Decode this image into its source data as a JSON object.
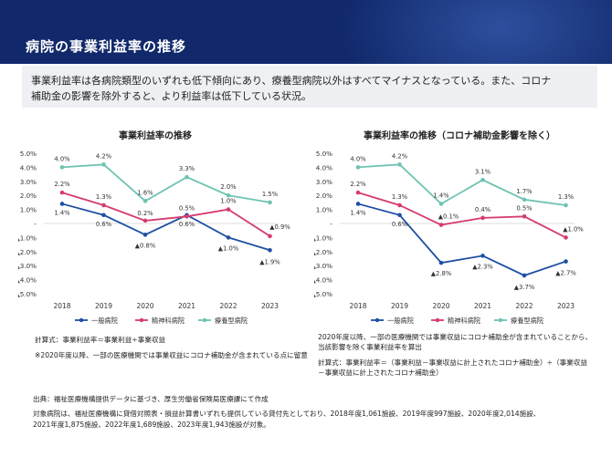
{
  "header": {
    "title": "病院の事業利益率の推移"
  },
  "summary": {
    "line1": "事業利益率は各病院類型のいずれも低下傾向にあり、療養型病院以外はすべてマイナスとなっている。また、コロナ",
    "line2": "補助金の影響を除外すると、より利益率は低下している状況。"
  },
  "colors": {
    "general": "#1e4fa3",
    "psych": "#d63b6e",
    "care": "#6ec3b4",
    "header": "#11296b"
  },
  "left_chart": {
    "title": "事業利益率の推移",
    "legend": [
      "一般病院",
      "精神科病院",
      "療養型病院"
    ],
    "note1": "計算式：事業利益率＝事業利益÷事業収益",
    "note2": "※2020年度以降、一部の医療機関では事業収益にコロナ補助金が含まれている点に留意"
  },
  "right_chart": {
    "title": "事業利益率の推移（コロナ補助金影響を除く）",
    "legend": [
      "一般病院",
      "精神科病院",
      "療養型病院"
    ],
    "note1": "2020年度以降、一部の医療機関では事業収益にコロナ補助金が含まれていることから、",
    "note2": "当該影響を除く事業利益率を算出",
    "note3": "計算式：事業利益率＝（事業利益－事業収益に計上されたコロナ補助金）÷（事業収益",
    "note4": "－事業収益に計上されたコロナ補助金）"
  },
  "source": {
    "line1": "出典：福祉医療機構提供データに基づき、厚生労働省保険局医療課にて作成",
    "line2": "対象病院は、福祉医療機構に貸借対照表・損益計算書いずれも提供している貸付先としており、2018年度1,061施設、2019年度997施設、2020年度2,014施設、",
    "line3": "2021年度1,875施設、2022年度1,689施設、2023年度1,943施設が対象。"
  },
  "chart_data": [
    {
      "type": "line",
      "title": "事業利益率の推移",
      "categories": [
        "2018",
        "2019",
        "2020",
        "2021",
        "2022",
        "2023"
      ],
      "y_ticks": [
        "5.0%",
        "4.0%",
        "3.0%",
        "2.0%",
        "1.0%",
        "-",
        "▲1.0%",
        "▲2.0%",
        "▲3.0%",
        "▲4.0%",
        "▲5.0%"
      ],
      "ylim": [
        -5,
        5
      ],
      "series": [
        {
          "name": "一般病院",
          "color": "#1e4fa3",
          "values": [
            1.4,
            0.6,
            -0.8,
            0.6,
            -1.0,
            -1.9
          ],
          "labels": [
            "1.4%",
            "0.6%",
            "▲0.8%",
            "0.6%",
            "▲1.0%",
            "▲1.9%"
          ]
        },
        {
          "name": "精神科病院",
          "color": "#d63b6e",
          "values": [
            2.2,
            1.3,
            0.2,
            0.5,
            1.0,
            -0.9
          ],
          "labels": [
            "2.2%",
            "1.3%",
            "0.2%",
            "0.5%",
            "1.0%",
            "▲0.9%"
          ]
        },
        {
          "name": "療養型病院",
          "color": "#6ec3b4",
          "values": [
            4.0,
            4.2,
            1.6,
            3.3,
            2.0,
            1.5
          ],
          "labels": [
            "4.0%",
            "4.2%",
            "1.6%",
            "3.3%",
            "2.0%",
            "1.5%"
          ]
        }
      ]
    },
    {
      "type": "line",
      "title": "事業利益率の推移（コロナ補助金影響を除く）",
      "categories": [
        "2018",
        "2019",
        "2020",
        "2021",
        "2022",
        "2023"
      ],
      "y_ticks": [
        "5.0%",
        "4.0%",
        "3.0%",
        "2.0%",
        "1.0%",
        "-",
        "▲1.0%",
        "▲2.0%",
        "▲3.0%",
        "▲4.0%",
        "▲5.0%"
      ],
      "ylim": [
        -5,
        5
      ],
      "series": [
        {
          "name": "一般病院",
          "color": "#1e4fa3",
          "values": [
            1.4,
            0.6,
            -2.8,
            -2.3,
            -3.7,
            -2.7
          ],
          "labels": [
            "1.4%",
            "0.6%",
            "▲2.8%",
            "▲2.3%",
            "▲3.7%",
            "▲2.7%"
          ]
        },
        {
          "name": "精神科病院",
          "color": "#d63b6e",
          "values": [
            2.2,
            1.3,
            -0.1,
            0.4,
            0.5,
            -1.0
          ],
          "labels": [
            "2.2%",
            "1.3%",
            "▲0.1%",
            "0.4%",
            "0.5%",
            "▲1.0%"
          ]
        },
        {
          "name": "療養型病院",
          "color": "#6ec3b4",
          "values": [
            4.0,
            4.2,
            1.4,
            3.1,
            1.7,
            1.3
          ],
          "labels": [
            "4.0%",
            "4.2%",
            "1.4%",
            "3.1%",
            "1.7%",
            "1.3%"
          ]
        }
      ]
    }
  ]
}
